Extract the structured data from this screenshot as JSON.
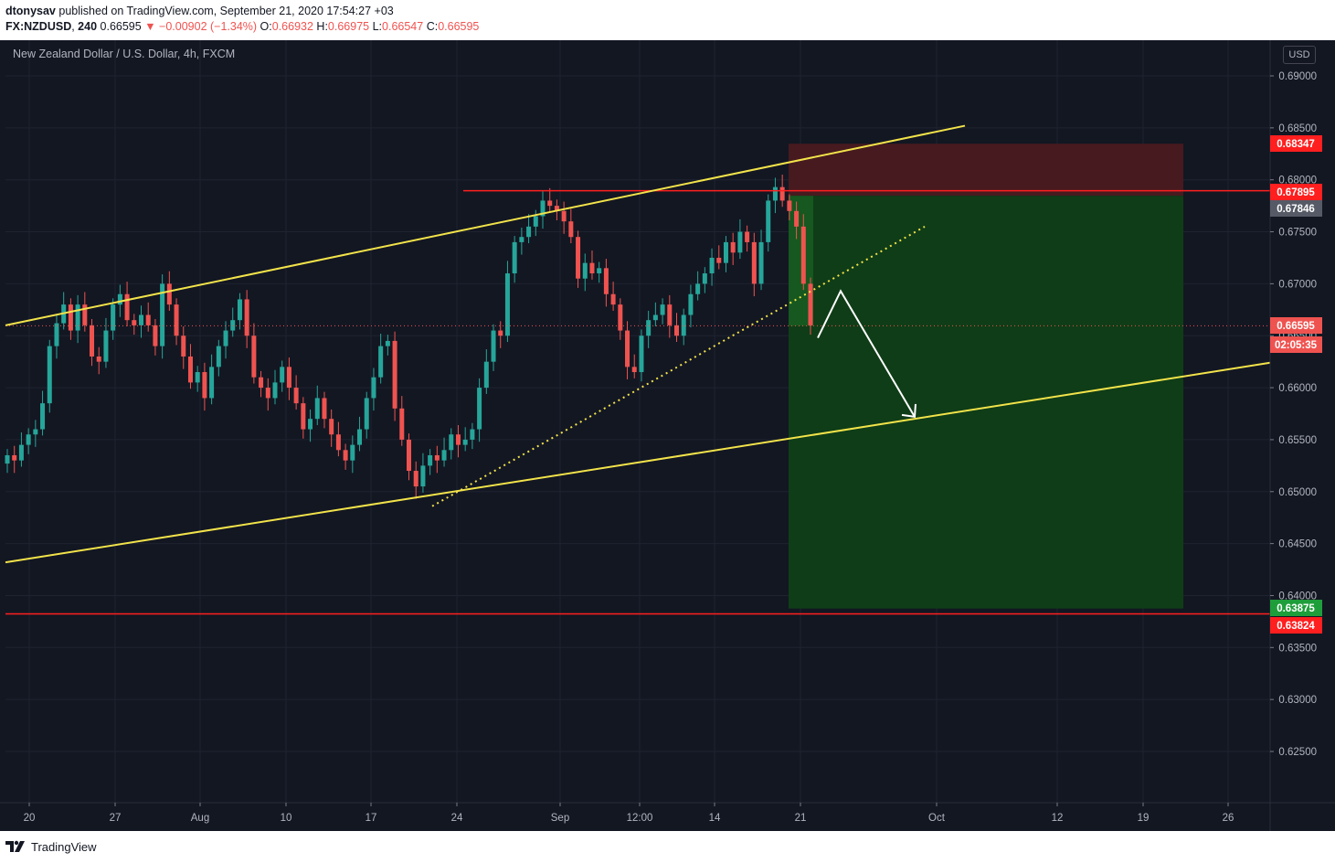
{
  "header": {
    "author": "dtonysav",
    "published_text": "published on TradingView.com, September 21, 2020 17:54:27 +03",
    "symbol": "FX:NZDUSD",
    "interval": "240",
    "last": "0.66595",
    "change": "▼ −0.00902 (−1.34%)",
    "open_label": "O:",
    "open": "0.66932",
    "high_label": "H:",
    "high": "0.66975",
    "low_label": "L:",
    "low": "0.66547",
    "close_label": "C:",
    "close": "0.66595"
  },
  "chart_title": "New Zealand Dollar / U.S. Dollar, 4h, FXCM",
  "currency_badge": "USD",
  "footer": {
    "brand": "TradingView"
  },
  "colors": {
    "background": "#131722",
    "grid": "#1f2330",
    "up": "#26a69a",
    "down": "#ef5350",
    "channel": "#f2e34a",
    "level": "#ff1f1f",
    "stop_zone": "#4a1a20",
    "target_zone": "#0f3f17"
  },
  "chart_data": {
    "type": "candlestick",
    "y_axis": {
      "min": 0.6195,
      "max": 0.694,
      "ticks": [
        "0.62500",
        "0.63000",
        "0.63500",
        "0.64000",
        "0.64500",
        "0.65000",
        "0.65500",
        "0.66000",
        "0.66500",
        "0.67000",
        "0.67500",
        "0.68000",
        "0.68500",
        "0.69000"
      ]
    },
    "x_axis": {
      "ticks": [
        "20",
        "27",
        "Aug",
        "10",
        "17",
        "24",
        "Sep",
        "12:00",
        "14",
        "21",
        "Oct",
        "12",
        "19",
        "26"
      ]
    },
    "price_labels": [
      {
        "value": "0.68347",
        "color": "#ff1f1f"
      },
      {
        "value": "0.67895",
        "color": "#ff1f1f"
      },
      {
        "value": "0.67846",
        "color": "#555a66"
      },
      {
        "value": "0.66595",
        "color": "#ef5350"
      },
      {
        "value": "02:05:35",
        "color": "#ef5350"
      },
      {
        "value": "0.63875",
        "color": "#1e9e3a"
      },
      {
        "value": "0.63824",
        "color": "#ff1f1f"
      }
    ],
    "horizontal_levels": [
      0.67895,
      0.63824
    ],
    "last_price": 0.66595,
    "position": {
      "entry": 0.67846,
      "stop": 0.68347,
      "target": 0.63875
    },
    "channel": {
      "upper": [
        0.666,
        0.6852
      ],
      "lower": [
        0.6432,
        0.6624
      ]
    },
    "trendline": [
      0.6486,
      0.6755
    ],
    "projection_path": [
      0.6648,
      0.6693,
      0.6572
    ],
    "price_path": [
      0.6535,
      0.653,
      0.6545,
      0.6555,
      0.656,
      0.6585,
      0.664,
      0.6662,
      0.668,
      0.6655,
      0.668,
      0.666,
      0.663,
      0.6625,
      0.6655,
      0.668,
      0.669,
      0.6665,
      0.666,
      0.667,
      0.666,
      0.664,
      0.67,
      0.668,
      0.665,
      0.663,
      0.6605,
      0.6615,
      0.659,
      0.662,
      0.664,
      0.6655,
      0.6665,
      0.6685,
      0.665,
      0.661,
      0.66,
      0.659,
      0.6605,
      0.662,
      0.66,
      0.6585,
      0.656,
      0.657,
      0.659,
      0.657,
      0.6555,
      0.654,
      0.653,
      0.6545,
      0.656,
      0.659,
      0.661,
      0.664,
      0.6645,
      0.658,
      0.655,
      0.652,
      0.6505,
      0.6525,
      0.6535,
      0.653,
      0.654,
      0.6555,
      0.6545,
      0.655,
      0.656,
      0.66,
      0.6625,
      0.6655,
      0.665,
      0.671,
      0.674,
      0.6745,
      0.6755,
      0.6765,
      0.678,
      0.6775,
      0.677,
      0.676,
      0.6745,
      0.6705,
      0.672,
      0.671,
      0.6715,
      0.669,
      0.668,
      0.6655,
      0.662,
      0.6615,
      0.665,
      0.6665,
      0.667,
      0.668,
      0.666,
      0.665,
      0.667,
      0.669,
      0.67,
      0.671,
      0.6725,
      0.672,
      0.674,
      0.673,
      0.675,
      0.674,
      0.67,
      0.674,
      0.678,
      0.6793,
      0.678,
      0.677,
      0.6755,
      0.67,
      0.666
    ]
  }
}
